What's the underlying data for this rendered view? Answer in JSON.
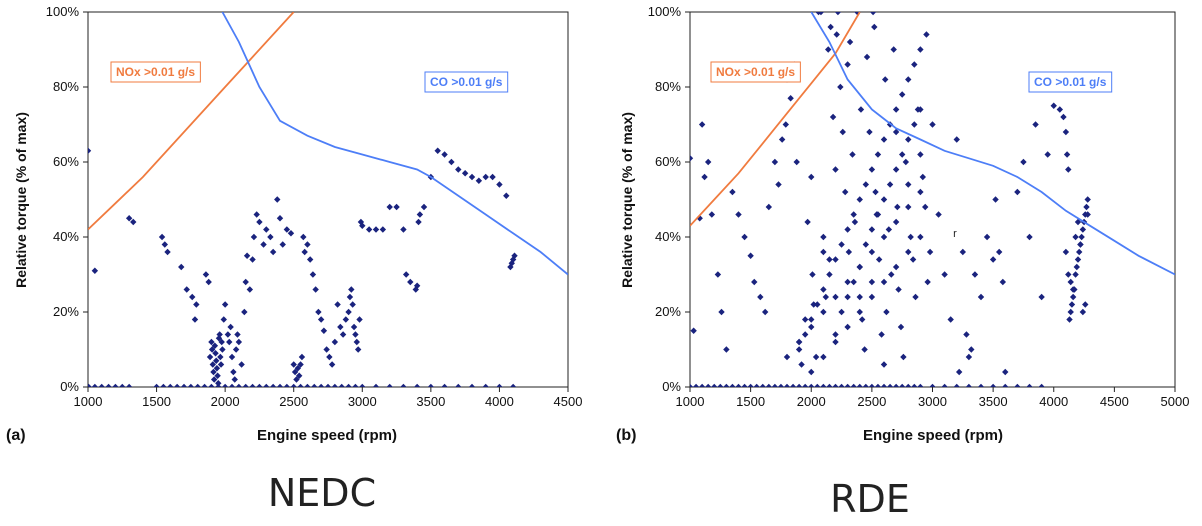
{
  "figure": {
    "caption_a": "NEDC",
    "caption_b": "RDE"
  },
  "chart_data": [
    {
      "type": "scatter",
      "panel_label": "(a)",
      "xlabel": "Engine speed (rpm)",
      "ylabel": "Relative torque (% of max)",
      "xlim": [
        1000,
        4500
      ],
      "ylim": [
        0,
        100
      ],
      "xticks": [
        1000,
        1500,
        2000,
        2500,
        3000,
        3500,
        4000,
        4500
      ],
      "yticks": [
        0,
        20,
        40,
        60,
        80,
        100
      ],
      "ytick_labels": [
        "0%",
        "20%",
        "40%",
        "60%",
        "80%",
        "100%"
      ],
      "grid": false,
      "marker_color": "#1a237e",
      "curves": [
        {
          "label": "NOx >0.01 g/s",
          "color": "#f07b3f",
          "x": [
            1000,
            1200,
            1400,
            1600,
            1800,
            2000,
            2200,
            2400,
            2500
          ],
          "y": [
            42,
            49,
            56,
            64,
            72,
            80,
            88,
            96,
            100
          ]
        },
        {
          "label": "CO >0.01 g/s",
          "color": "#4d7ef7",
          "x": [
            1980,
            2100,
            2250,
            2400,
            2600,
            2800,
            3000,
            3200,
            3400,
            3500,
            3700,
            3900,
            4100,
            4300,
            4500
          ],
          "y": [
            100,
            92,
            80,
            71,
            67,
            64,
            62,
            60,
            58,
            56,
            51,
            46,
            41,
            36,
            30
          ]
        }
      ],
      "x": [
        1005,
        1050,
        1100,
        1150,
        1200,
        1250,
        1300,
        1500,
        1550,
        1600,
        1650,
        1700,
        1750,
        1800,
        1850,
        1900,
        1950,
        2000,
        2050,
        2100,
        2150,
        2200,
        2250,
        2300,
        2350,
        2400,
        2450,
        2500,
        2550,
        2600,
        2650,
        2700,
        2750,
        2800,
        2850,
        2900,
        2950,
        3000,
        3100,
        3200,
        3300,
        3400,
        3500,
        3600,
        3700,
        3800,
        3900,
        4000,
        4100,
        1000,
        1050,
        1300,
        1330,
        1540,
        1560,
        1580,
        1680,
        1720,
        1760,
        1780,
        1790,
        1860,
        1880,
        1890,
        1900,
        1905,
        1910,
        1915,
        1920,
        1925,
        1930,
        1935,
        1940,
        1945,
        1950,
        1955,
        1960,
        1965,
        1970,
        1975,
        1980,
        1990,
        2000,
        2020,
        2030,
        2040,
        2050,
        2060,
        2070,
        2080,
        2090,
        2100,
        2120,
        2140,
        2150,
        2160,
        2180,
        2200,
        2210,
        2230,
        2250,
        2280,
        2300,
        2330,
        2350,
        2380,
        2400,
        2420,
        2450,
        2480,
        2500,
        2510,
        2520,
        2530,
        2540,
        2550,
        2560,
        2570,
        2580,
        2600,
        2620,
        2640,
        2660,
        2680,
        2700,
        2720,
        2740,
        2760,
        2780,
        2800,
        2820,
        2840,
        2860,
        2880,
        2900,
        2910,
        2920,
        2930,
        2940,
        2950,
        2960,
        2970,
        2980,
        2990,
        3000,
        3050,
        3100,
        3150,
        3200,
        3250,
        3300,
        3320,
        3350,
        3390,
        3400,
        3410,
        3420,
        3450,
        3500,
        3550,
        3600,
        3650,
        3700,
        3750,
        3800,
        3850,
        3900,
        3950,
        4000,
        4050,
        4080,
        4090,
        4100,
        4110
      ],
      "y": [
        0,
        0,
        0,
        0,
        0,
        0,
        0,
        0,
        0,
        0,
        0,
        0,
        0,
        0,
        0,
        0,
        0,
        0,
        0,
        0,
        0,
        0,
        0,
        0,
        0,
        0,
        0,
        0,
        0,
        0,
        0,
        0,
        0,
        0,
        0,
        0,
        0,
        0,
        0,
        0,
        0,
        0,
        0,
        0,
        0,
        0,
        0,
        0,
        0,
        63,
        31,
        45,
        44,
        40,
        38,
        36,
        32,
        26,
        24,
        18,
        22,
        30,
        28,
        8,
        12,
        10,
        6,
        4,
        2,
        11,
        9,
        7,
        5,
        3,
        1,
        13,
        14,
        8,
        6,
        12,
        10,
        18,
        22,
        14,
        12,
        16,
        8,
        4,
        2,
        10,
        14,
        12,
        6,
        20,
        28,
        35,
        26,
        34,
        40,
        46,
        44,
        38,
        42,
        40,
        36,
        50,
        45,
        38,
        42,
        41,
        6,
        4,
        2,
        5,
        3,
        6,
        8,
        40,
        36,
        38,
        34,
        30,
        26,
        20,
        18,
        15,
        10,
        8,
        6,
        12,
        22,
        16,
        14,
        18,
        20,
        24,
        26,
        22,
        16,
        14,
        12,
        10,
        18,
        44,
        43,
        42,
        42,
        42,
        48,
        48,
        42,
        30,
        28,
        26,
        27,
        44,
        46,
        48,
        56,
        63,
        62,
        60,
        58,
        57,
        56,
        55,
        56,
        56,
        54,
        51,
        32,
        33,
        34,
        35
      ]
    },
    {
      "type": "scatter",
      "panel_label": "(b)",
      "xlabel": "Engine speed (rpm)",
      "ylabel": "Relative torque (% of max)",
      "xlim": [
        1000,
        5000
      ],
      "ylim": [
        0,
        100
      ],
      "xticks": [
        1000,
        1500,
        2000,
        2500,
        3000,
        3500,
        4000,
        4500,
        5000
      ],
      "yticks": [
        0,
        20,
        40,
        60,
        80,
        100
      ],
      "ytick_labels": [
        "0%",
        "20%",
        "40%",
        "60%",
        "80%",
        "100%"
      ],
      "grid": false,
      "marker_color": "#1a237e",
      "annotation": "r",
      "curves": [
        {
          "label": "NOx >0.01 g/s",
          "color": "#f07b3f",
          "x": [
            1000,
            1200,
            1400,
            1600,
            1800,
            2000,
            2200,
            2400
          ],
          "y": [
            43,
            50,
            57,
            65,
            73,
            81,
            89,
            100
          ]
        },
        {
          "label": "CO >0.01 g/s",
          "color": "#4d7ef7",
          "x": [
            2000,
            2150,
            2300,
            2500,
            2700,
            2900,
            3100,
            3300,
            3500,
            3700,
            3900,
            4100,
            4300,
            4500,
            4700,
            5000
          ],
          "y": [
            100,
            92,
            82,
            74,
            69,
            66,
            63,
            61,
            59,
            56,
            52,
            47,
            43,
            39,
            35,
            30
          ]
        }
      ],
      "x": [
        1000,
        1050,
        1100,
        1150,
        1200,
        1250,
        1300,
        1350,
        1400,
        1450,
        1500,
        1550,
        1600,
        1650,
        1700,
        1750,
        1800,
        1850,
        1900,
        1950,
        2000,
        2050,
        2100,
        2150,
        2200,
        2250,
        2300,
        2350,
        2400,
        2450,
        2500,
        2550,
        2600,
        2650,
        2700,
        2750,
        2800,
        2850,
        2900,
        3000,
        3100,
        3200,
        3300,
        3400,
        3500,
        3600,
        3700,
        3800,
        3900,
        1000,
        1030,
        1080,
        1100,
        1120,
        1150,
        1180,
        1230,
        1260,
        1300,
        1350,
        1400,
        1450,
        1500,
        1530,
        1580,
        1620,
        1650,
        1700,
        1730,
        1760,
        1790,
        1800,
        1830,
        1860,
        1880,
        1900,
        1920,
        1950,
        1970,
        2000,
        2010,
        2020,
        2040,
        2060,
        2080,
        2100,
        2120,
        2140,
        2160,
        2180,
        2200,
        2210,
        2220,
        2240,
        2260,
        2280,
        2300,
        2310,
        2320,
        2340,
        2360,
        2380,
        2400,
        2410,
        2420,
        2440,
        2460,
        2480,
        2500,
        2510,
        2520,
        2530,
        2540,
        2560,
        2580,
        2600,
        2610,
        2620,
        2640,
        2660,
        2680,
        2700,
        2710,
        2720,
        2740,
        2760,
        2780,
        2800,
        2820,
        2840,
        2860,
        2880,
        2900,
        2920,
        2940,
        2960,
        2980,
        3000,
        3050,
        3100,
        3150,
        3200,
        3220,
        3250,
        3280,
        3300,
        3320,
        3350,
        3400,
        3450,
        3500,
        3520,
        3550,
        3580,
        3600,
        3700,
        3750,
        3800,
        3850,
        3900,
        3950,
        4000,
        4050,
        4080,
        4100,
        4110,
        4120,
        4130,
        4140,
        4150,
        4160,
        4170,
        4180,
        4190,
        4200,
        4210,
        4220,
        4230,
        4240,
        4250,
        4260,
        4270,
        4280,
        4100,
        4120,
        4140,
        4160,
        4180,
        4200,
        4220,
        4240,
        4260,
        4280,
        2100,
        2150,
        2200,
        2250,
        2300,
        2350,
        2400,
        2450,
        2500,
        2550,
        2600,
        2650,
        2700,
        2750,
        2800,
        2850,
        2900,
        1900,
        1950,
        2000,
        2050,
        2100,
        2150,
        2200,
        2250,
        2300,
        2350,
        2400,
        2450,
        2500,
        2550,
        2600,
        2650,
        2700,
        2750,
        2800,
        2850,
        2900,
        2950,
        2000,
        2100,
        2200,
        2300,
        2400,
        2500,
        2600,
        2700,
        2800,
        2900,
        1800,
        1900,
        2000,
        2100,
        2200,
        2300,
        2400,
        2500,
        2600,
        2700,
        2800,
        2900
      ],
      "y": [
        0,
        0,
        0,
        0,
        0,
        0,
        0,
        0,
        0,
        0,
        0,
        0,
        0,
        0,
        0,
        0,
        0,
        0,
        0,
        0,
        0,
        0,
        0,
        0,
        0,
        0,
        0,
        0,
        0,
        0,
        0,
        0,
        0,
        0,
        0,
        0,
        0,
        0,
        0,
        0,
        0,
        0,
        0,
        0,
        0,
        0,
        0,
        0,
        0,
        61,
        15,
        45,
        70,
        56,
        60,
        46,
        30,
        20,
        10,
        52,
        46,
        40,
        35,
        28,
        24,
        20,
        48,
        60,
        54,
        66,
        70,
        82,
        77,
        86,
        60,
        12,
        6,
        18,
        44,
        56,
        30,
        22,
        8,
        100,
        100,
        36,
        24,
        90,
        96,
        72,
        58,
        94,
        100,
        80,
        68,
        52,
        86,
        36,
        92,
        62,
        44,
        100,
        24,
        74,
        18,
        10,
        88,
        68,
        28,
        100,
        96,
        52,
        46,
        34,
        14,
        6,
        82,
        20,
        42,
        30,
        90,
        68,
        48,
        26,
        16,
        8,
        60,
        54,
        40,
        34,
        24,
        74,
        62,
        56,
        48,
        28,
        36,
        70,
        46,
        30,
        18,
        66,
        4,
        36,
        14,
        8,
        10,
        30,
        24,
        40,
        34,
        50,
        36,
        28,
        4,
        52,
        60,
        40,
        70,
        24,
        62,
        75,
        74,
        72,
        68,
        62,
        58,
        18,
        20,
        22,
        24,
        26,
        30,
        32,
        34,
        36,
        38,
        40,
        42,
        44,
        46,
        48,
        50,
        36,
        30,
        28,
        26,
        40,
        44,
        38,
        20,
        22,
        46,
        40,
        34,
        14,
        20,
        24,
        28,
        32,
        38,
        42,
        46,
        50,
        54,
        58,
        62,
        66,
        70,
        74,
        10,
        14,
        18,
        22,
        26,
        30,
        34,
        38,
        42,
        46,
        50,
        54,
        58,
        62,
        66,
        70,
        74,
        78,
        82,
        86,
        90,
        94,
        4,
        8,
        12,
        16,
        20,
        24,
        28,
        32,
        36,
        40,
        8,
        12,
        16,
        20,
        24,
        28,
        32,
        36,
        40,
        44,
        48,
        52
      ]
    }
  ]
}
